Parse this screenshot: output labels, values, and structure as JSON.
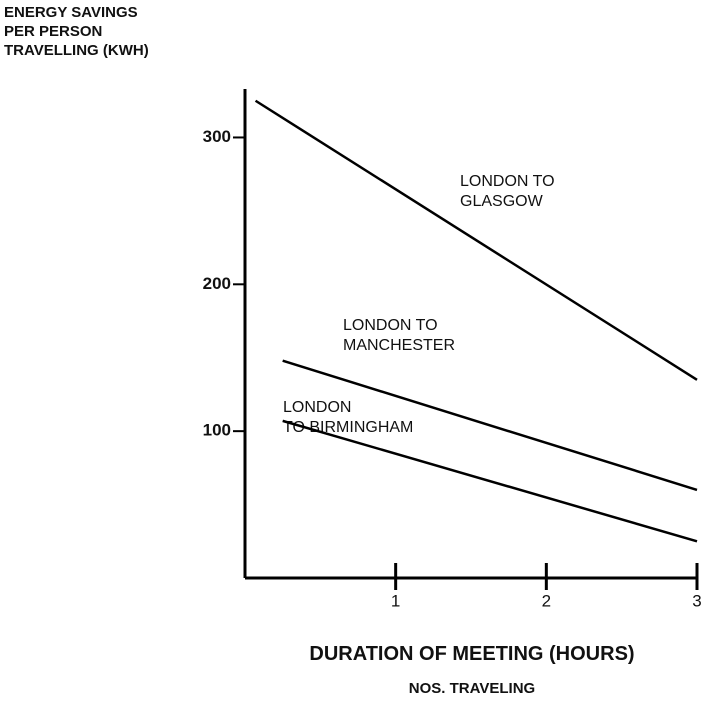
{
  "chart_data": {
    "type": "line",
    "y_label": "ENERGY SAVINGS\nPER PERSON\nTRAVELLING (KWH)",
    "x_label": "DURATION OF MEETING (HOURS)",
    "x_label_2": "NOS. TRAVELING",
    "xlim": [
      0,
      3
    ],
    "xticks": [
      1,
      2,
      3
    ],
    "ylim": [
      0,
      333
    ],
    "yticks": [
      100,
      200,
      300
    ],
    "color": "#000000",
    "series": [
      {
        "name": "LONDON TO\nGLASGOW",
        "x": [
          0.07,
          3
        ],
        "values": [
          325,
          135
        ]
      },
      {
        "name": "LONDON TO\nMANCHESTER",
        "x": [
          0.25,
          3
        ],
        "values": [
          148,
          60
        ]
      },
      {
        "name": "LONDON\nTO BIRMINGHAM",
        "x": [
          0.25,
          3
        ],
        "values": [
          107,
          25
        ]
      }
    ]
  }
}
